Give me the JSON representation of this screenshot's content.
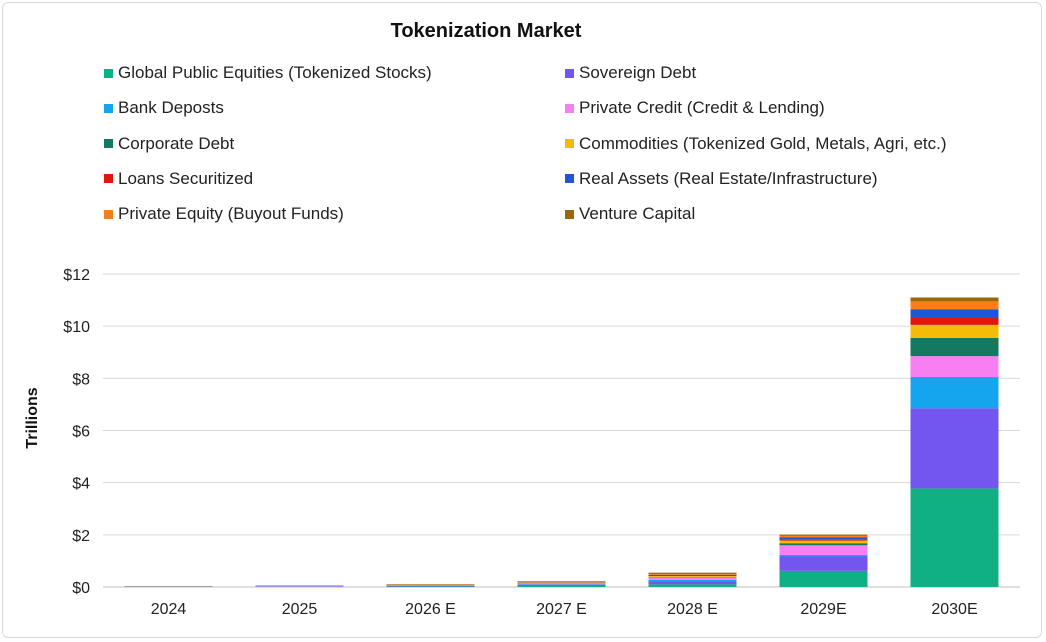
{
  "chart_data": {
    "type": "bar",
    "stacked": true,
    "title": "Tokenization Market",
    "ylabel": "Trillions",
    "xlabel": "",
    "ylim": [
      0,
      12
    ],
    "yticks": [
      0,
      2,
      4,
      6,
      8,
      10,
      12
    ],
    "ytick_labels": [
      "$0",
      "$2",
      "$4",
      "$6",
      "$8",
      "$10",
      "$12"
    ],
    "grid": true,
    "legend_position": "top",
    "categories": [
      "2024",
      "2025",
      "2026 E",
      "2027 E",
      "2028 E",
      "2029E",
      "2030E"
    ],
    "series": [
      {
        "name": "Global Public Equities (Tokenized Stocks)",
        "color": "#10b084",
        "values": [
          0.005,
          0.01,
          0.02,
          0.04,
          0.1,
          0.62,
          3.78
        ]
      },
      {
        "name": "Sovereign Debt",
        "color": "#7356f0",
        "values": [
          0.01,
          0.015,
          0.025,
          0.05,
          0.11,
          0.55,
          3.07
        ]
      },
      {
        "name": "Bank Deposts",
        "color": "#14a5ee",
        "values": [
          0.003,
          0.005,
          0.01,
          0.02,
          0.06,
          0.06,
          1.2
        ]
      },
      {
        "name": "Private Credit (Credit & Lending)",
        "color": "#f77ff2",
        "values": [
          0.005,
          0.01,
          0.015,
          0.03,
          0.1,
          0.37,
          0.8
        ]
      },
      {
        "name": "Corporate Debt",
        "color": "#137a61",
        "values": [
          0.002,
          0.003,
          0.005,
          0.01,
          0.02,
          0.08,
          0.7
        ]
      },
      {
        "name": "Commodities (Tokenized Gold, Metals, Agri, etc.)",
        "color": "#f5bb06",
        "values": [
          0.002,
          0.003,
          0.005,
          0.01,
          0.03,
          0.1,
          0.5
        ]
      },
      {
        "name": "Loans Securitized",
        "color": "#e0160f",
        "values": [
          0.001,
          0.002,
          0.003,
          0.007,
          0.02,
          0.05,
          0.3
        ]
      },
      {
        "name": "Real Assets (Real Estate/Infrastructure)",
        "color": "#1f55d9",
        "values": [
          0.001,
          0.002,
          0.003,
          0.007,
          0.03,
          0.08,
          0.3
        ]
      },
      {
        "name": "Private Equity (Buyout Funds)",
        "color": "#fd7e14",
        "values": [
          0.002,
          0.005,
          0.008,
          0.015,
          0.03,
          0.05,
          0.3
        ]
      },
      {
        "name": "Venture Capital",
        "color": "#9a6a06",
        "values": [
          0.004,
          0.01,
          0.016,
          0.03,
          0.05,
          0.05,
          0.15
        ]
      }
    ]
  }
}
